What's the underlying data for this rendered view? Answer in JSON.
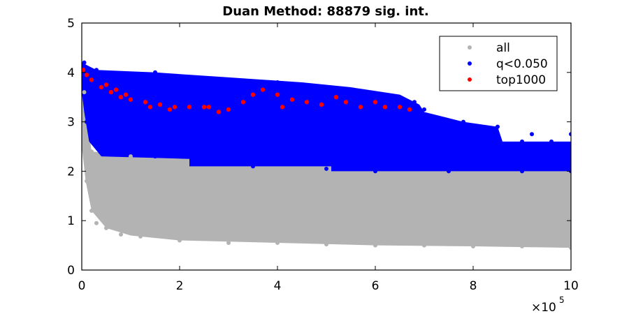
{
  "chart_data": {
    "type": "scatter",
    "title": "Duan Method: 88879 sig. int.",
    "xlabel": "",
    "ylabel": "",
    "x_multiplier_label": "×10",
    "x_multiplier_exponent": "5",
    "xlim": [
      0,
      1000000
    ],
    "ylim": [
      0,
      5
    ],
    "x_ticks": [
      0,
      200000,
      400000,
      600000,
      800000,
      1000000
    ],
    "x_tick_labels": [
      "0",
      "2",
      "4",
      "6",
      "8",
      "10"
    ],
    "y_ticks": [
      0,
      1,
      2,
      3,
      4,
      5
    ],
    "y_tick_labels": [
      "0",
      "1",
      "2",
      "3",
      "4",
      "5"
    ],
    "grid": false,
    "legend_position": "top-right",
    "series": [
      {
        "name": "all",
        "color": "#b3b3b3",
        "points": [
          [
            5000,
            3.6
          ],
          [
            10000,
            1.8
          ],
          [
            20000,
            1.2
          ],
          [
            30000,
            0.95
          ],
          [
            50000,
            0.85
          ],
          [
            80000,
            0.72
          ],
          [
            120000,
            0.68
          ],
          [
            200000,
            0.6
          ],
          [
            300000,
            0.55
          ],
          [
            400000,
            0.55
          ],
          [
            500000,
            0.52
          ],
          [
            600000,
            0.5
          ],
          [
            700000,
            0.5
          ],
          [
            800000,
            0.48
          ],
          [
            900000,
            0.48
          ],
          [
            1000000,
            0.45
          ],
          [
            5000,
            2.8
          ],
          [
            20000,
            2.4
          ],
          [
            100000,
            2.3
          ],
          [
            300000,
            2.05
          ],
          [
            500000,
            2.0
          ],
          [
            700000,
            1.95
          ],
          [
            900000,
            1.95
          ],
          [
            1000000,
            1.9
          ],
          [
            150000,
            1.5
          ],
          [
            350000,
            1.2
          ],
          [
            550000,
            0.9
          ],
          [
            750000,
            1.4
          ],
          [
            950000,
            0.8
          ]
        ]
      },
      {
        "name": "q<0.050",
        "color": "#0000ff",
        "points": [
          [
            5000,
            4.2
          ],
          [
            30000,
            4.05
          ],
          [
            100000,
            3.95
          ],
          [
            150000,
            4.0
          ],
          [
            220000,
            3.9
          ],
          [
            300000,
            3.85
          ],
          [
            400000,
            3.8
          ],
          [
            500000,
            3.7
          ],
          [
            600000,
            3.55
          ],
          [
            680000,
            3.4
          ],
          [
            700000,
            3.25
          ],
          [
            780000,
            3.0
          ],
          [
            850000,
            2.9
          ],
          [
            920000,
            2.75
          ],
          [
            1000000,
            2.75
          ],
          [
            10000,
            3.0
          ],
          [
            60000,
            2.4
          ],
          [
            150000,
            2.3
          ],
          [
            250000,
            2.15
          ],
          [
            350000,
            2.1
          ],
          [
            500000,
            2.05
          ],
          [
            600000,
            2.0
          ],
          [
            750000,
            2.0
          ],
          [
            900000,
            2.0
          ],
          [
            1000000,
            2.0
          ],
          [
            800000,
            2.6
          ],
          [
            900000,
            2.6
          ],
          [
            960000,
            2.6
          ]
        ]
      },
      {
        "name": "top1000",
        "color": "#ff0000",
        "points": [
          [
            3000,
            4.05
          ],
          [
            10000,
            3.95
          ],
          [
            20000,
            3.85
          ],
          [
            40000,
            3.7
          ],
          [
            60000,
            3.6
          ],
          [
            80000,
            3.5
          ],
          [
            100000,
            3.45
          ],
          [
            130000,
            3.4
          ],
          [
            160000,
            3.35
          ],
          [
            190000,
            3.3
          ],
          [
            220000,
            3.3
          ],
          [
            260000,
            3.3
          ],
          [
            300000,
            3.25
          ],
          [
            330000,
            3.4
          ],
          [
            350000,
            3.55
          ],
          [
            370000,
            3.65
          ],
          [
            400000,
            3.55
          ],
          [
            410000,
            3.3
          ],
          [
            430000,
            3.45
          ],
          [
            460000,
            3.4
          ],
          [
            490000,
            3.35
          ],
          [
            520000,
            3.5
          ],
          [
            540000,
            3.4
          ],
          [
            570000,
            3.3
          ],
          [
            600000,
            3.4
          ],
          [
            620000,
            3.3
          ],
          [
            650000,
            3.3
          ],
          [
            670000,
            3.25
          ],
          [
            250000,
            3.3
          ],
          [
            180000,
            3.25
          ],
          [
            140000,
            3.3
          ],
          [
            90000,
            3.55
          ],
          [
            50000,
            3.75
          ],
          [
            70000,
            3.65
          ],
          [
            280000,
            3.2
          ]
        ]
      }
    ]
  }
}
